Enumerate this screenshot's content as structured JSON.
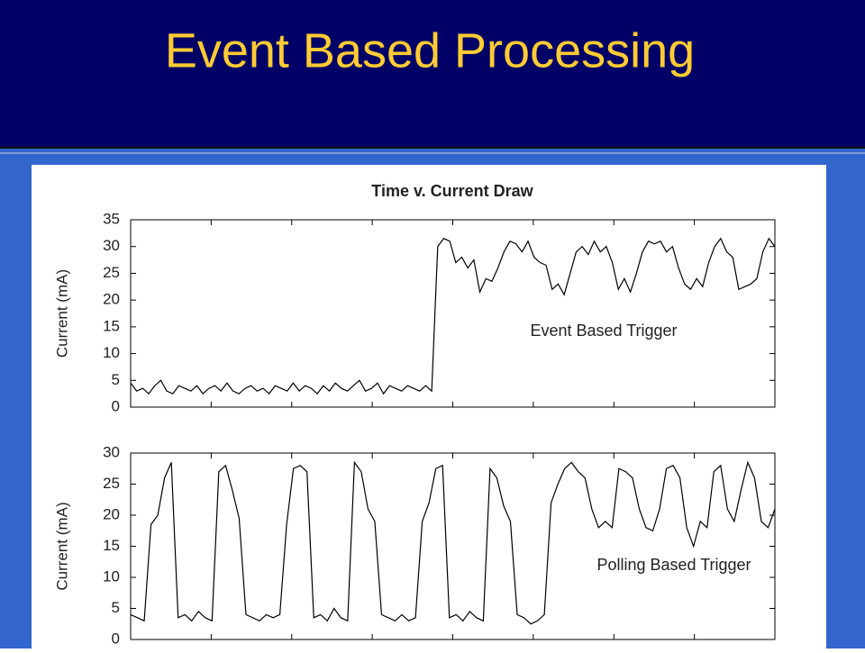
{
  "header": {
    "title": "Event Based Processing"
  },
  "chart_data": [
    {
      "type": "line",
      "title": "Time v. Current Draw",
      "ylabel": "Current (mA)",
      "annotation": "Event Based Trigger",
      "color": "#000000",
      "ylim": [
        0,
        35
      ],
      "yticks": [
        0,
        5,
        10,
        15,
        20,
        25,
        30,
        35
      ],
      "values": [
        4.5,
        3,
        3.5,
        2.5,
        4,
        5,
        3,
        2.5,
        4,
        3.5,
        3,
        4,
        2.5,
        3.5,
        4,
        3,
        4.5,
        3,
        2.5,
        3.5,
        4,
        3,
        3.5,
        2.5,
        4,
        3.5,
        3,
        4.5,
        3,
        4,
        3.5,
        2.5,
        4,
        3,
        4.5,
        3.5,
        3,
        4,
        5,
        3,
        3.5,
        4.5,
        2.5,
        4,
        3.5,
        3,
        4,
        3.5,
        3,
        4,
        3,
        30,
        31.5,
        31,
        27,
        28,
        26,
        27.5,
        21.5,
        24,
        23.5,
        26,
        29,
        31,
        30.5,
        29,
        31,
        28,
        27,
        26.5,
        22,
        23,
        21,
        25,
        29,
        30,
        28.5,
        31,
        29,
        30,
        27,
        22,
        24,
        21.5,
        25,
        29,
        31,
        30.5,
        31,
        29,
        30,
        26,
        23,
        22,
        24,
        22.5,
        27,
        30,
        31.5,
        29,
        28,
        22,
        22.5,
        23,
        24,
        29,
        31.5,
        30
      ]
    },
    {
      "type": "line",
      "ylabel": "Current (mA)",
      "annotation": "Polling Based Trigger",
      "color": "#000000",
      "ylim": [
        0,
        30
      ],
      "yticks": [
        0,
        5,
        10,
        15,
        20,
        25,
        30
      ],
      "values": [
        4,
        3.5,
        3,
        18.5,
        20,
        26,
        28.5,
        3.5,
        4,
        3,
        4.5,
        3.5,
        3,
        27,
        28,
        24,
        19.5,
        4,
        3.5,
        3,
        4,
        3.5,
        4,
        18.5,
        27.5,
        28,
        27,
        3.5,
        4,
        3,
        5,
        3.5,
        3,
        28.5,
        27,
        21,
        19,
        4,
        3.5,
        3,
        4,
        3,
        3.5,
        19,
        22,
        27.5,
        28,
        3.5,
        4,
        3,
        4.5,
        3.5,
        3,
        27.5,
        26,
        21.5,
        19,
        4,
        3.5,
        2.5,
        3,
        4,
        22,
        25,
        27.5,
        28.5,
        27,
        26,
        21,
        18,
        19,
        18,
        27.5,
        27,
        26,
        21,
        18,
        17.5,
        21,
        27.5,
        28,
        26,
        18,
        15,
        19,
        18,
        27,
        28,
        21,
        19,
        24,
        28.5,
        26,
        19,
        18,
        21
      ]
    }
  ]
}
